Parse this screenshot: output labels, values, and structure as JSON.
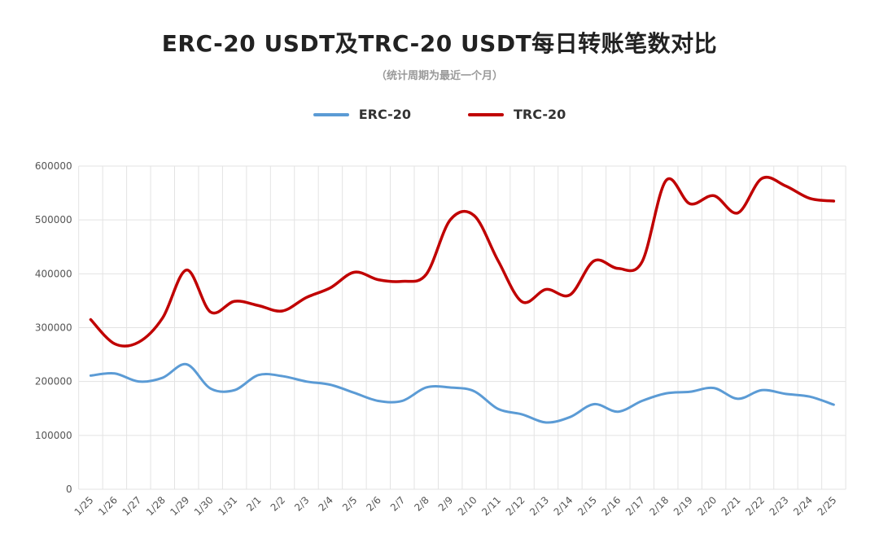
{
  "chart_data": {
    "type": "line",
    "title": "ERC-20 USDT及TRC-20 USDT每日转账笔数对比",
    "subtitle": "（统计周期为最近一个月）",
    "xlabel": "",
    "ylabel": "",
    "ylim": [
      0,
      600000
    ],
    "yticks": [
      "0",
      "100000",
      "200000",
      "300000",
      "400000",
      "500000",
      "600000"
    ],
    "grid": true,
    "legend_position": "top-center",
    "categories": [
      "1/25",
      "1/26",
      "1/27",
      "1/28",
      "1/29",
      "1/30",
      "1/31",
      "2/1",
      "2/2",
      "2/3",
      "2/4",
      "2/5",
      "2/6",
      "2/7",
      "2/8",
      "2/9",
      "2/10",
      "2/11",
      "2/12",
      "2/13",
      "2/14",
      "2/15",
      "2/16",
      "2/17",
      "2/18",
      "2/19",
      "2/20",
      "2/21",
      "2/22",
      "2/23",
      "2/24",
      "2/25"
    ],
    "series": [
      {
        "name": "ERC-20",
        "color": "#5b9bd5",
        "values": [
          211000,
          215000,
          200000,
          207000,
          232000,
          187000,
          184000,
          212000,
          210000,
          200000,
          194000,
          179000,
          164000,
          164000,
          189000,
          189000,
          182000,
          149000,
          139000,
          124000,
          134000,
          158000,
          144000,
          164000,
          178000,
          181000,
          188000,
          168000,
          184000,
          177000,
          172000,
          157000
        ]
      },
      {
        "name": "TRC-20",
        "color": "#c00000",
        "values": [
          315000,
          270000,
          273000,
          318000,
          407000,
          329000,
          349000,
          341000,
          331000,
          356000,
          374000,
          403000,
          389000,
          386000,
          399000,
          500000,
          508000,
          424000,
          348000,
          371000,
          361000,
          424000,
          410000,
          422000,
          573000,
          530000,
          545000,
          513000,
          577000,
          563000,
          540000,
          535000
        ]
      }
    ]
  }
}
